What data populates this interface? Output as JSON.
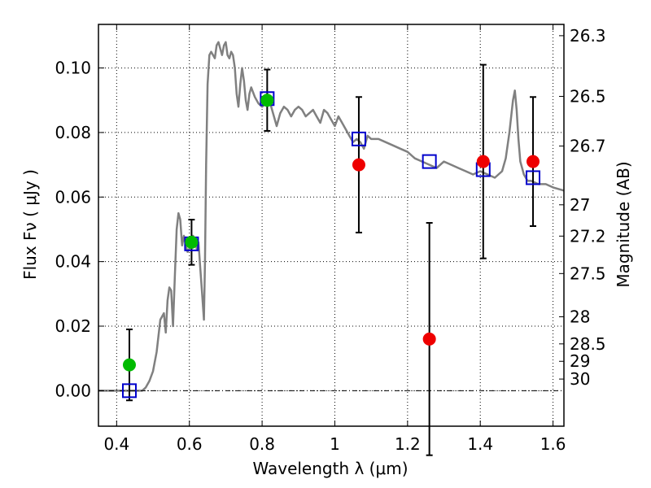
{
  "chart_data": {
    "type": "scatter",
    "xlabel": "Wavelength  λ (μm)",
    "ylabel": "Flux  Fν  ( μJy )",
    "y2label": "Magnitude (AB)",
    "xlim": [
      0.35,
      1.63
    ],
    "ylim": [
      -0.011,
      0.1135
    ],
    "xticks": [
      {
        "value": 0.4,
        "label": "0.4"
      },
      {
        "value": 0.6,
        "label": "0.6"
      },
      {
        "value": 0.8,
        "label": "0.8"
      },
      {
        "value": 1.0,
        "label": "1"
      },
      {
        "value": 1.2,
        "label": "1.2"
      },
      {
        "value": 1.4,
        "label": "1.4"
      },
      {
        "value": 1.6,
        "label": "1.6"
      }
    ],
    "yticks": [
      {
        "value": 0.0,
        "label": "0.00"
      },
      {
        "value": 0.02,
        "label": "0.02"
      },
      {
        "value": 0.04,
        "label": "0.04"
      },
      {
        "value": 0.06,
        "label": "0.06"
      },
      {
        "value": 0.08,
        "label": "0.08"
      },
      {
        "value": 0.1,
        "label": "0.10"
      }
    ],
    "y2ticks": [
      {
        "label": "26.3",
        "flux": 0.11
      },
      {
        "label": "26.5",
        "flux": 0.0912
      },
      {
        "label": "26.7",
        "flux": 0.0758
      },
      {
        "label": "27",
        "flux": 0.0576
      },
      {
        "label": "27.2",
        "flux": 0.0479
      },
      {
        "label": "27.5",
        "flux": 0.0363
      },
      {
        "label": "28",
        "flux": 0.0229
      },
      {
        "label": "28.5",
        "flux": 0.0145
      },
      {
        "label": "29",
        "flux": 0.0091
      },
      {
        "label": "30",
        "flux": 0.0036
      }
    ],
    "grid": true,
    "colors": {
      "model": "#808080",
      "photometry_green": "#00bb00",
      "photometry_red": "#ee0000",
      "model_flux_box": "#0000cc",
      "error_bar": "#000000"
    },
    "model_spectrum": {
      "x": [
        0.35,
        0.47,
        0.48,
        0.49,
        0.5,
        0.51,
        0.52,
        0.53,
        0.535,
        0.54,
        0.545,
        0.55,
        0.555,
        0.56,
        0.565,
        0.57,
        0.575,
        0.58,
        0.585,
        0.59,
        0.595,
        0.6,
        0.605,
        0.61,
        0.615,
        0.62,
        0.625,
        0.63,
        0.635,
        0.64,
        0.643,
        0.646,
        0.65,
        0.655,
        0.66,
        0.665,
        0.67,
        0.675,
        0.68,
        0.685,
        0.69,
        0.695,
        0.7,
        0.705,
        0.71,
        0.715,
        0.72,
        0.725,
        0.73,
        0.735,
        0.74,
        0.745,
        0.75,
        0.755,
        0.76,
        0.765,
        0.77,
        0.78,
        0.79,
        0.8,
        0.81,
        0.82,
        0.83,
        0.84,
        0.85,
        0.86,
        0.87,
        0.88,
        0.89,
        0.9,
        0.91,
        0.92,
        0.93,
        0.94,
        0.95,
        0.96,
        0.97,
        0.98,
        0.99,
        1.0,
        1.01,
        1.02,
        1.03,
        1.04,
        1.05,
        1.06,
        1.07,
        1.08,
        1.09,
        1.1,
        1.12,
        1.14,
        1.16,
        1.18,
        1.2,
        1.22,
        1.24,
        1.26,
        1.28,
        1.3,
        1.32,
        1.34,
        1.36,
        1.38,
        1.4,
        1.42,
        1.44,
        1.46,
        1.47,
        1.48,
        1.49,
        1.495,
        1.5,
        1.505,
        1.51,
        1.52,
        1.53,
        1.54,
        1.56,
        1.58,
        1.6,
        1.63
      ],
      "y": [
        0.0,
        0.0,
        0.001,
        0.003,
        0.006,
        0.012,
        0.022,
        0.024,
        0.018,
        0.028,
        0.032,
        0.031,
        0.02,
        0.035,
        0.05,
        0.055,
        0.053,
        0.045,
        0.048,
        0.045,
        0.043,
        0.044,
        0.046,
        0.048,
        0.047,
        0.044,
        0.046,
        0.038,
        0.03,
        0.022,
        0.04,
        0.07,
        0.095,
        0.104,
        0.105,
        0.104,
        0.103,
        0.107,
        0.108,
        0.106,
        0.104,
        0.107,
        0.108,
        0.104,
        0.103,
        0.105,
        0.104,
        0.1,
        0.092,
        0.088,
        0.095,
        0.1,
        0.096,
        0.09,
        0.087,
        0.092,
        0.094,
        0.091,
        0.089,
        0.088,
        0.089,
        0.09,
        0.086,
        0.082,
        0.086,
        0.088,
        0.087,
        0.085,
        0.087,
        0.088,
        0.087,
        0.085,
        0.086,
        0.087,
        0.085,
        0.083,
        0.087,
        0.086,
        0.084,
        0.082,
        0.085,
        0.083,
        0.081,
        0.079,
        0.077,
        0.078,
        0.077,
        0.075,
        0.079,
        0.078,
        0.078,
        0.077,
        0.076,
        0.075,
        0.074,
        0.072,
        0.071,
        0.07,
        0.069,
        0.071,
        0.07,
        0.069,
        0.068,
        0.067,
        0.068,
        0.067,
        0.066,
        0.068,
        0.072,
        0.08,
        0.09,
        0.093,
        0.087,
        0.078,
        0.071,
        0.067,
        0.065,
        0.065,
        0.064,
        0.064,
        0.063,
        0.062
      ]
    },
    "photometry": [
      {
        "x": 0.435,
        "y": 0.008,
        "err_low": 0.011,
        "err_high": 0.011,
        "color": "green"
      },
      {
        "x": 0.606,
        "y": 0.046,
        "err_low": 0.007,
        "err_high": 0.007,
        "color": "green"
      },
      {
        "x": 0.814,
        "y": 0.09,
        "err_low": 0.0095,
        "err_high": 0.0095,
        "color": "green"
      },
      {
        "x": 1.066,
        "y": 0.07,
        "err_low": 0.021,
        "err_high": 0.021,
        "color": "red"
      },
      {
        "x": 1.26,
        "y": 0.016,
        "err_low": 0.036,
        "err_high": 0.036,
        "color": "red"
      },
      {
        "x": 1.408,
        "y": 0.071,
        "err_low": 0.03,
        "err_high": 0.03,
        "color": "red"
      },
      {
        "x": 1.545,
        "y": 0.071,
        "err_low": 0.02,
        "err_high": 0.02,
        "color": "red"
      }
    ],
    "model_fluxes": [
      {
        "x": 0.435,
        "y": 0.0
      },
      {
        "x": 0.606,
        "y": 0.0455
      },
      {
        "x": 0.814,
        "y": 0.0905
      },
      {
        "x": 1.066,
        "y": 0.078
      },
      {
        "x": 1.26,
        "y": 0.071
      },
      {
        "x": 1.408,
        "y": 0.0685
      },
      {
        "x": 1.545,
        "y": 0.066
      }
    ]
  }
}
